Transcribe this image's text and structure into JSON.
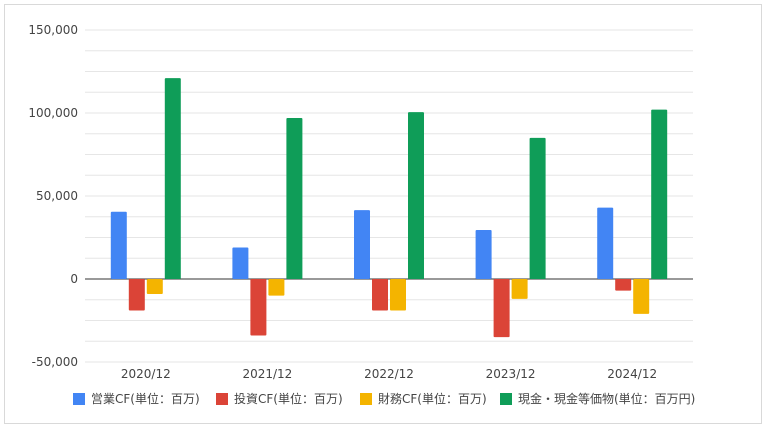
{
  "chart_data": {
    "type": "bar",
    "title": "",
    "xlabel": "",
    "ylabel": "",
    "categories": [
      "2020/12",
      "2021/12",
      "2022/12",
      "2023/12",
      "2024/12"
    ],
    "ylim": [
      -50000,
      150000
    ],
    "y_ticks": [
      150000,
      100000,
      50000,
      0,
      -50000
    ],
    "y_tick_labels": [
      "150,000",
      "100,000",
      "50,000",
      "0",
      "-50,000"
    ],
    "grid": true,
    "legend_position": "bottom",
    "series": [
      {
        "name": "営業CF(単位：百万)",
        "color": "#4285f4",
        "values": [
          40500,
          19000,
          41500,
          29500,
          43000
        ]
      },
      {
        "name": "投資CF(単位：百万)",
        "color": "#db4437",
        "values": [
          -19000,
          -34000,
          -19000,
          -35000,
          -7000
        ]
      },
      {
        "name": "財務CF(単位：百万)",
        "color": "#f4b400",
        "values": [
          -9000,
          -10000,
          -19000,
          -12000,
          -21000
        ]
      },
      {
        "name": "現金・現金等価物(単位：百万円)",
        "color": "#0f9d58",
        "values": [
          121000,
          97000,
          100500,
          85000,
          102000
        ]
      }
    ]
  }
}
